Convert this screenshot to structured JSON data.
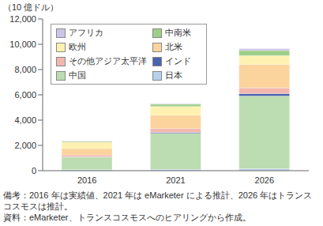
{
  "chart_data": {
    "type": "bar",
    "stacked": true,
    "y_label": "（10 億ドル）",
    "categories": [
      "2016",
      "2021",
      "2026"
    ],
    "series": [
      {
        "name": "日本",
        "color": "#b7d1ec",
        "values": [
          80,
          110,
          150
        ]
      },
      {
        "name": "中国",
        "color": "#bcdcb2",
        "values": [
          1000,
          2850,
          5750
        ]
      },
      {
        "name": "インド",
        "color": "#4a63ad",
        "values": [
          20,
          70,
          200
        ]
      },
      {
        "name": "その他アジア太平洋",
        "color": "#f3b7ae",
        "values": [
          150,
          300,
          450
        ]
      },
      {
        "name": "北米",
        "color": "#fbd39c",
        "values": [
          500,
          1050,
          1850
        ]
      },
      {
        "name": "欧州",
        "color": "#fff1b0",
        "values": [
          500,
          700,
          700
        ]
      },
      {
        "name": "中南米",
        "color": "#9fcf86",
        "values": [
          70,
          180,
          400
        ]
      },
      {
        "name": "アフリカ",
        "color": "#cbc5e8",
        "values": [
          30,
          60,
          150
        ]
      }
    ],
    "ylim": [
      0,
      12000
    ],
    "yticks": [
      0,
      {
        "value": 2000,
        "label": "2,000"
      },
      {
        "value": 4000,
        "label": "4,000"
      },
      {
        "value": 6000,
        "label": "6,000"
      },
      {
        "value": 8000,
        "label": "8,000"
      },
      {
        "value": 10000,
        "label": "10,000"
      },
      {
        "value": 12000,
        "label": "12,000"
      }
    ],
    "grid": false,
    "legend": "upper left",
    "notes": [
      "備考：2016 年は実績値、2021 年は eMarketer による推計、2026 年はトランスコスモスは推計。",
      "資料：eMarketer、トランスコスモスへのヒアリングから作成。"
    ]
  }
}
